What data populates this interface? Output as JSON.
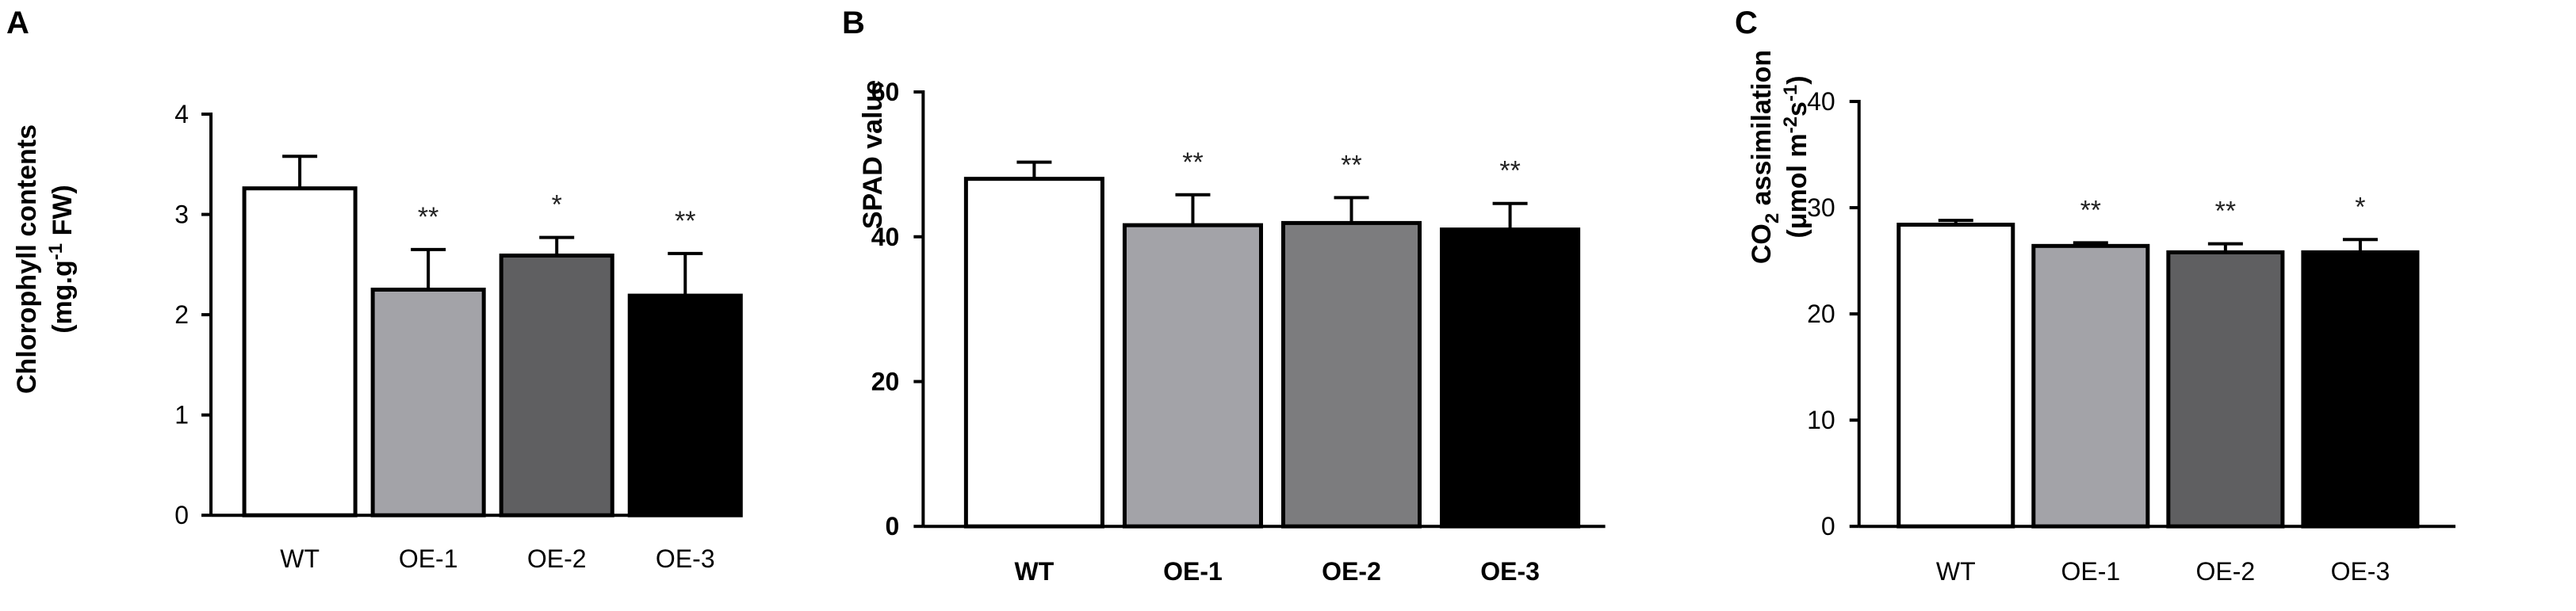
{
  "chart_data": [
    {
      "panel": "A",
      "type": "bar",
      "categories": [
        "WT",
        "OE-1",
        "OE-2",
        "OE-3"
      ],
      "values": [
        3.26,
        2.25,
        2.59,
        2.19
      ],
      "errors": [
        0.32,
        0.4,
        0.18,
        0.42
      ],
      "significance": [
        "",
        "**",
        "*",
        "**"
      ],
      "colors": [
        "#ffffff",
        "#a3a3a8",
        "#5f5f61",
        "#000000"
      ],
      "ylabel_line1": "Chlorophyll contents",
      "ylabel_line2": "(mg.g",
      "ylabel_sup": "-1",
      "ylabel_line2_end": " FW)",
      "ylim": [
        0,
        4
      ],
      "yticks": [
        0,
        1,
        2,
        3,
        4
      ]
    },
    {
      "panel": "B",
      "type": "bar",
      "categories": [
        "WT",
        "OE-1",
        "OE-2",
        "OE-3"
      ],
      "values": [
        48.0,
        41.6,
        41.9,
        41.0
      ],
      "errors": [
        2.3,
        4.2,
        3.5,
        3.6
      ],
      "significance": [
        "",
        "**",
        "**",
        "**"
      ],
      "colors": [
        "#ffffff",
        "#a3a3a8",
        "#7c7c7e",
        "#000000"
      ],
      "ylabel": "SPAD value",
      "ylim": [
        0,
        60
      ],
      "yticks": [
        0,
        20,
        40,
        60
      ]
    },
    {
      "panel": "C",
      "type": "bar",
      "categories": [
        "WT",
        "OE-1",
        "OE-2",
        "OE-3"
      ],
      "values": [
        28.4,
        26.4,
        25.8,
        25.8
      ],
      "errors": [
        0.4,
        0.3,
        0.8,
        1.2
      ],
      "significance": [
        "",
        "**",
        "**",
        "*"
      ],
      "colors": [
        "#ffffff",
        "#a3a3a8",
        "#5f5f61",
        "#000000"
      ],
      "ylabel_line1_pre": "CO",
      "ylabel_line1_sub": "2",
      "ylabel_line1_post": " assimilation",
      "ylabel_line2_pre": "(μmol m",
      "ylabel_line2_sup1": "-2",
      "ylabel_line2_mid": "s",
      "ylabel_line2_sup2": "-1",
      "ylabel_line2_post": ")",
      "ylim": [
        0,
        40
      ],
      "yticks": [
        0,
        10,
        20,
        30,
        40
      ]
    }
  ]
}
